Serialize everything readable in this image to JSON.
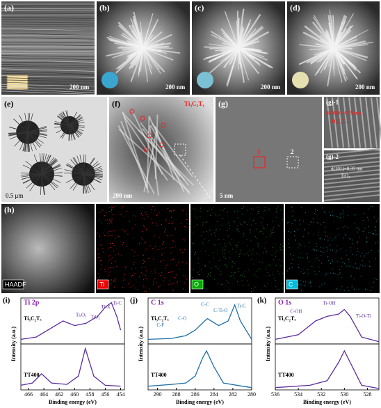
{
  "images": [
    {
      "label": "(a)",
      "scale": "200 nm"
    },
    {
      "label": "(b)",
      "scale": "200 nm"
    },
    {
      "label": "(c)",
      "scale": "200 nm"
    },
    {
      "label": "(d)",
      "scale": "200 nm"
    }
  ],
  "tem": {
    "e": {
      "label": "(e)",
      "scale": "0.5 μm"
    },
    "f": {
      "label": "(f)",
      "scale": "200 nm",
      "tag": "Ti₃C₂Tₓ"
    },
    "g": {
      "label": "(g)",
      "scale": "5 nm",
      "boxes": [
        "1",
        "2"
      ]
    },
    "g1": {
      "label": "(g)-1",
      "d": "d(0004)=0.79 nm",
      "phase": "Ti₃C₂Tₓ"
    },
    "g2": {
      "label": "(g)-2",
      "d": "d(101)=0.35 nm",
      "phase": "TiO₂"
    }
  },
  "mapping": {
    "label": "(h)",
    "channels": [
      "HAADF",
      "Ti",
      "O",
      "C"
    ]
  },
  "chart_data": [
    {
      "type": "line",
      "letter": "(i)",
      "title": "Ti 2p",
      "label": "Ti₃C₂Tₓ",
      "ylabel": "Intensity (a.u.)",
      "xlim": [
        467,
        453.5
      ],
      "ylim": [
        0,
        1
      ],
      "annotations": [
        "TiO₂",
        "TiₓOᵧ",
        "Ti-X",
        "Ti-C"
      ],
      "color": "#5b2c9f",
      "x": [
        467,
        465,
        463,
        461.5,
        460,
        458.5,
        457,
        456,
        455.2,
        454.5,
        454
      ],
      "values": [
        0.1,
        0.15,
        0.35,
        0.5,
        0.4,
        0.45,
        0.6,
        0.8,
        0.9,
        0.6,
        0.3
      ]
    },
    {
      "type": "line",
      "label": "TT400",
      "xlabel": "Binding energy (eV)",
      "xlim": [
        467,
        453.5
      ],
      "ylim": [
        0,
        1
      ],
      "xticks": [
        466,
        464,
        462,
        460,
        458,
        456,
        454
      ],
      "color": "#5b2c9f",
      "x": [
        467,
        465.5,
        464.3,
        463,
        461,
        459.5,
        458.6,
        457.5,
        456,
        454
      ],
      "values": [
        0.1,
        0.15,
        0.35,
        0.15,
        0.12,
        0.3,
        0.9,
        0.3,
        0.1,
        0.08
      ]
    },
    {
      "type": "line",
      "letter": "(j)",
      "title": "C 1s",
      "label": "Ti₃C₂Tₓ",
      "ylabel": "Intensity (a.u.)",
      "xlim": [
        291,
        280
      ],
      "ylim": [
        0,
        1
      ],
      "annotations": [
        "C-F",
        "C-O",
        "C-C",
        "C-Ti-O",
        "Ti-C"
      ],
      "color": "#1f6fa8",
      "x": [
        291,
        288.5,
        287,
        286,
        285,
        284.7,
        283.5,
        282.5,
        281.8,
        281.2,
        280
      ],
      "values": [
        0.1,
        0.12,
        0.18,
        0.3,
        0.5,
        0.55,
        0.4,
        0.5,
        0.85,
        0.5,
        0.1
      ]
    },
    {
      "type": "line",
      "label": "TT400",
      "xlabel": "Binding energy (eV)",
      "xlim": [
        291,
        280
      ],
      "ylim": [
        0,
        1
      ],
      "xticks": [
        290,
        288,
        286,
        284,
        282,
        280
      ],
      "color": "#1f6fa8",
      "x": [
        291,
        288.5,
        287,
        286,
        285.2,
        284.8,
        284,
        283,
        281,
        280
      ],
      "values": [
        0.08,
        0.12,
        0.15,
        0.3,
        0.7,
        0.85,
        0.5,
        0.15,
        0.08,
        0.05
      ]
    },
    {
      "type": "line",
      "letter": "(k)",
      "title": "O 1s",
      "label": "Ti₃C₂Tₓ",
      "ylabel": "Intensity (a.u.)",
      "xlim": [
        536,
        527
      ],
      "ylim": [
        0,
        1
      ],
      "annotations": [
        "C-OH",
        "Ti-OH",
        "Ti-O-Ti"
      ],
      "color": "#5b2c9f",
      "x": [
        536,
        534,
        532.5,
        531.5,
        530.5,
        530,
        529.5,
        528.5,
        527
      ],
      "values": [
        0.1,
        0.2,
        0.5,
        0.6,
        0.65,
        0.75,
        0.6,
        0.15,
        0.05
      ]
    },
    {
      "type": "line",
      "label": "TT400",
      "xlabel": "Binding energy (eV)",
      "xlim": [
        536,
        527
      ],
      "ylim": [
        0,
        1
      ],
      "xticks": [
        536,
        534,
        532,
        530,
        528
      ],
      "color": "#5b2c9f",
      "x": [
        536,
        533,
        531.5,
        530.5,
        530,
        529.3,
        528.5,
        527
      ],
      "values": [
        0.05,
        0.1,
        0.2,
        0.6,
        0.85,
        0.5,
        0.1,
        0.03
      ]
    }
  ]
}
